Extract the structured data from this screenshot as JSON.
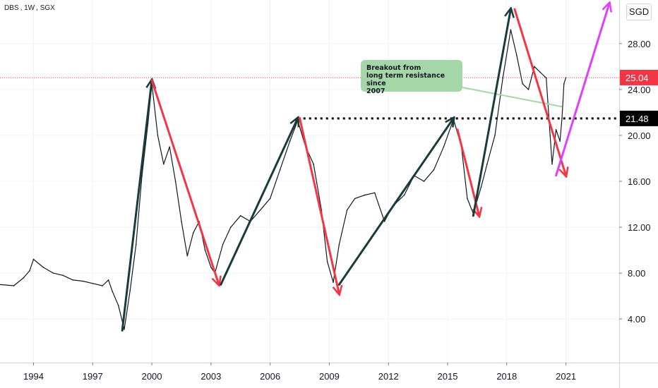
{
  "header": {
    "symbol": "DBS",
    "interval": "1W",
    "exchange": "SGX"
  },
  "currency_button": "SGD",
  "chart_data": {
    "type": "line",
    "title": "DBS, 1W, SGX",
    "x_ticks": [
      "1994",
      "1997",
      "2000",
      "2003",
      "2006",
      "2009",
      "2012",
      "2015",
      "2018",
      "2021"
    ],
    "x_tick_years": [
      1994,
      1997,
      2000,
      2003,
      2006,
      2009,
      2012,
      2015,
      2018,
      2021
    ],
    "y_ticks": [
      "4.00",
      "8.00",
      "12.00",
      "16.00",
      "20.00",
      "24.00",
      "28.00"
    ],
    "y_tick_values": [
      4,
      8,
      12,
      16,
      20,
      24,
      28
    ],
    "xlim": [
      1992.3,
      2023.7
    ],
    "ylim": [
      0.2,
      31.8
    ],
    "grid": true,
    "price_series": {
      "name": "DBS",
      "color": "#131722",
      "points": [
        [
          1992.3,
          7.0
        ],
        [
          1993.0,
          6.9
        ],
        [
          1993.5,
          7.6
        ],
        [
          1993.8,
          8.2
        ],
        [
          1994.0,
          9.2
        ],
        [
          1994.5,
          8.5
        ],
        [
          1995.0,
          8.0
        ],
        [
          1995.5,
          7.8
        ],
        [
          1996.0,
          7.4
        ],
        [
          1996.5,
          7.3
        ],
        [
          1997.0,
          7.1
        ],
        [
          1997.5,
          6.9
        ],
        [
          1997.8,
          7.4
        ],
        [
          1998.0,
          6.4
        ],
        [
          1998.3,
          5.2
        ],
        [
          1998.6,
          3.1
        ],
        [
          1998.9,
          6.5
        ],
        [
          1999.2,
          10.5
        ],
        [
          1999.5,
          16.5
        ],
        [
          1999.8,
          21.0
        ],
        [
          2000.0,
          24.5
        ],
        [
          2000.3,
          20.0
        ],
        [
          2000.6,
          17.5
        ],
        [
          2000.9,
          19.0
        ],
        [
          2001.2,
          16.0
        ],
        [
          2001.5,
          12.5
        ],
        [
          2001.8,
          9.5
        ],
        [
          2002.1,
          11.5
        ],
        [
          2002.4,
          12.5
        ],
        [
          2002.7,
          10.0
        ],
        [
          2003.0,
          8.5
        ],
        [
          2003.2,
          8.0
        ],
        [
          2003.6,
          10.5
        ],
        [
          2004.0,
          12.0
        ],
        [
          2004.5,
          13.0
        ],
        [
          2005.0,
          12.5
        ],
        [
          2005.5,
          13.5
        ],
        [
          2006.0,
          14.5
        ],
        [
          2006.5,
          17.0
        ],
        [
          2007.0,
          19.5
        ],
        [
          2007.4,
          21.3
        ],
        [
          2007.8,
          19.0
        ],
        [
          2008.2,
          17.5
        ],
        [
          2008.6,
          13.5
        ],
        [
          2008.9,
          9.0
        ],
        [
          2009.2,
          7.2
        ],
        [
          2009.5,
          10.5
        ],
        [
          2009.9,
          13.5
        ],
        [
          2010.3,
          14.5
        ],
        [
          2010.8,
          14.8
        ],
        [
          2011.3,
          15.0
        ],
        [
          2011.8,
          12.5
        ],
        [
          2012.2,
          13.8
        ],
        [
          2012.8,
          14.8
        ],
        [
          2013.3,
          16.5
        ],
        [
          2013.8,
          16.0
        ],
        [
          2014.3,
          17.0
        ],
        [
          2014.8,
          19.0
        ],
        [
          2015.3,
          21.4
        ],
        [
          2015.7,
          19.0
        ],
        [
          2016.0,
          14.5
        ],
        [
          2016.3,
          13.2
        ],
        [
          2016.7,
          15.5
        ],
        [
          2017.0,
          17.5
        ],
        [
          2017.4,
          20.0
        ],
        [
          2017.8,
          25.0
        ],
        [
          2018.2,
          29.2
        ],
        [
          2018.5,
          27.0
        ],
        [
          2018.8,
          24.5
        ],
        [
          2019.1,
          24.0
        ],
        [
          2019.4,
          26.0
        ],
        [
          2019.7,
          25.5
        ],
        [
          2020.0,
          25.0
        ],
        [
          2020.2,
          20.0
        ],
        [
          2020.3,
          17.5
        ],
        [
          2020.5,
          20.5
        ],
        [
          2020.7,
          19.5
        ],
        [
          2020.8,
          21.5
        ],
        [
          2020.9,
          24.5
        ],
        [
          2021.0,
          25.04
        ]
      ]
    },
    "last_price": {
      "value": 25.04,
      "label": "25.04",
      "color": "#f23645"
    },
    "resistance": {
      "value": 21.48,
      "label": "21.48",
      "from_year": 2007.4
    },
    "annotation": "Breakout from\n long term resistance since\n2007",
    "arrows": [
      {
        "color": "#1b3a3a",
        "from": [
          1998.5,
          3.0
        ],
        "to": [
          2000.0,
          24.8
        ]
      },
      {
        "color": "#f23645",
        "from": [
          2000.0,
          24.8
        ],
        "to": [
          2003.4,
          7.0
        ]
      },
      {
        "color": "#1b3a3a",
        "from": [
          2003.5,
          7.0
        ],
        "to": [
          2007.4,
          21.5
        ]
      },
      {
        "color": "#f23645",
        "from": [
          2007.5,
          21.5
        ],
        "to": [
          2009.5,
          6.2
        ]
      },
      {
        "color": "#1b3a3a",
        "from": [
          2009.5,
          7.0
        ],
        "to": [
          2015.3,
          21.5
        ]
      },
      {
        "color": "#f23645",
        "from": [
          2015.5,
          20.5
        ],
        "to": [
          2016.6,
          13.0
        ]
      },
      {
        "color": "#1b3a3a",
        "from": [
          2016.3,
          13.0
        ],
        "to": [
          2018.2,
          31.0
        ]
      },
      {
        "color": "#f23645",
        "from": [
          2018.4,
          31.0
        ],
        "to": [
          2021.0,
          16.5
        ]
      },
      {
        "color": "#e040fb",
        "from": [
          2020.5,
          16.5
        ],
        "to": [
          2023.2,
          31.5
        ]
      }
    ],
    "annotation_arrow_color": "#a5d6a7"
  }
}
